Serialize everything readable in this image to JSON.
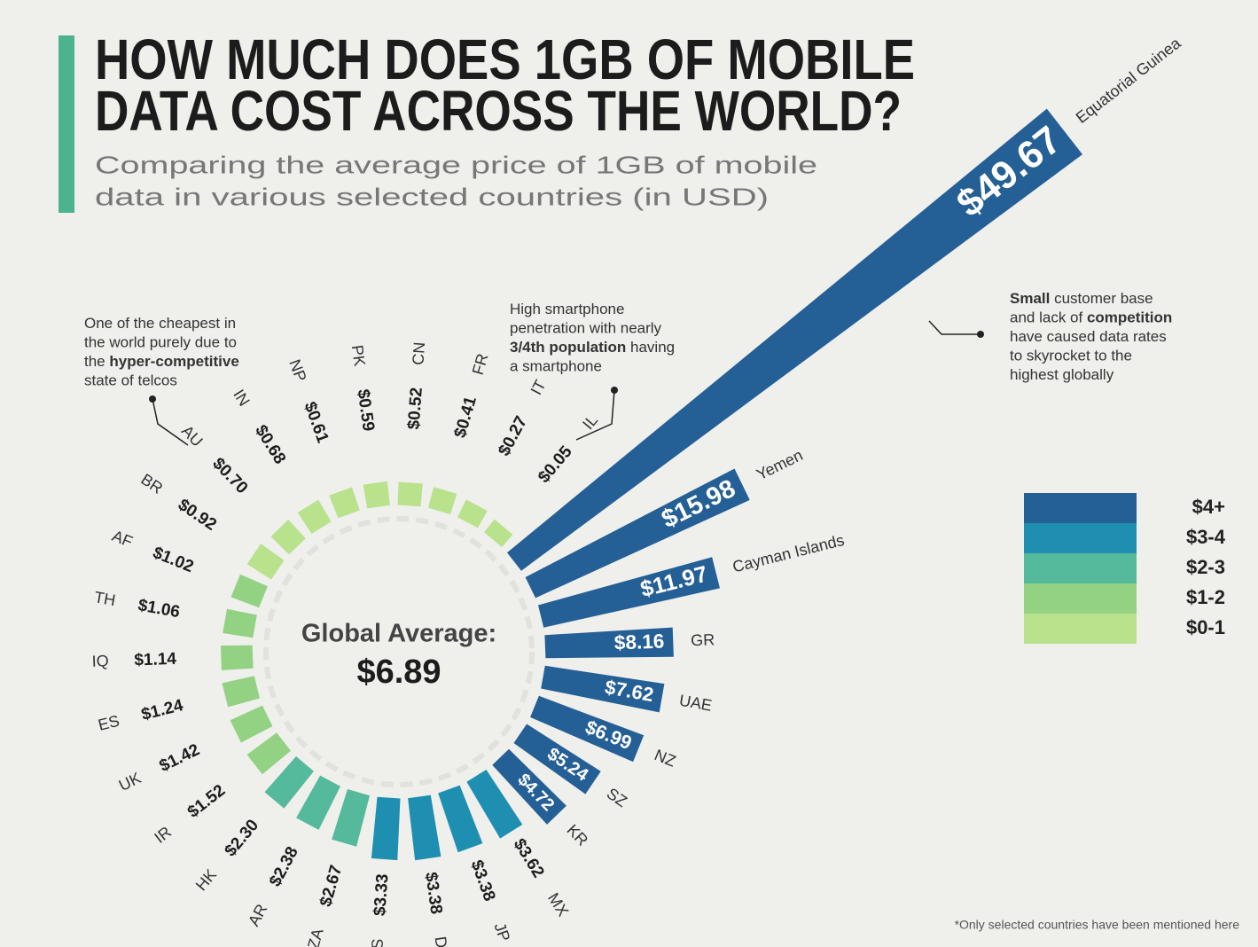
{
  "chart_data": {
    "type": "radial-bar",
    "title": [
      "HOW MUCH DOES 1GB OF MOBILE",
      "DATA COST ACROSS THE WORLD?"
    ],
    "subtitle": [
      "Comparing the average price of 1GB of mobile",
      "data in various selected countries (in USD)"
    ],
    "categories": [
      "IL",
      "IT",
      "FR",
      "CN",
      "PK",
      "NP",
      "IN",
      "AU",
      "BR",
      "AF",
      "TH",
      "IQ",
      "ES",
      "UK",
      "IR",
      "HK",
      "AR",
      "ZA",
      "US",
      "DE",
      "JP",
      "MX",
      "KR",
      "SZ",
      "NZ",
      "UAE",
      "GR",
      "Cayman Islands",
      "Yemen",
      "Equatorial Guinea"
    ],
    "values": [
      0.05,
      0.27,
      0.41,
      0.52,
      0.59,
      0.61,
      0.68,
      0.7,
      0.92,
      1.02,
      1.06,
      1.14,
      1.24,
      1.42,
      1.52,
      2.3,
      2.38,
      2.67,
      3.33,
      3.38,
      3.38,
      3.62,
      4.72,
      5.24,
      6.99,
      7.62,
      8.16,
      11.97,
      15.98,
      49.67
    ],
    "value_labels": [
      "$0.05",
      "$0.27",
      "$0.41",
      "$0.52",
      "$0.59",
      "$0.61",
      "$0.68",
      "$0.70",
      "$0.92",
      "$1.02",
      "$1.06",
      "$1.14",
      "$1.24",
      "$1.42",
      "$1.52",
      "$2.30",
      "$2.38",
      "$2.67",
      "$3.33",
      "$3.38",
      "$3.38",
      "$3.62",
      "$4.72",
      "$5.24",
      "$6.99",
      "$7.62",
      "$8.16",
      "$11.97",
      "$15.98",
      "$49.67"
    ],
    "colors": [
      "#b8e28c",
      "#b8e28c",
      "#b8e28c",
      "#b8e28c",
      "#b8e28c",
      "#b8e28c",
      "#b8e28c",
      "#b8e28c",
      "#b8e28c",
      "#93d283",
      "#93d283",
      "#93d283",
      "#93d283",
      "#93d283",
      "#93d283",
      "#55b99b",
      "#55b99b",
      "#55b99b",
      "#1f8fb1",
      "#1f8fb1",
      "#1f8fb1",
      "#1f8fb1",
      "#245f95",
      "#245f95",
      "#245f95",
      "#245f95",
      "#245f95",
      "#245f95",
      "#245f95",
      "#245f95"
    ],
    "center_label": "Global Average:",
    "global_average": "$6.89",
    "legend": [
      {
        "label": "$4+",
        "color": "#245f95"
      },
      {
        "label": "$3-4",
        "color": "#1f8fb1"
      },
      {
        "label": "$2-3",
        "color": "#55b99b"
      },
      {
        "label": "$1-2",
        "color": "#93d283"
      },
      {
        "label": "$0-1",
        "color": "#b8e28c"
      }
    ],
    "annotations": [
      {
        "lines": [
          [
            {
              "text": "One of the cheapest in"
            }
          ],
          [
            {
              "text": "the world purely due to"
            }
          ],
          [
            {
              "text": "the "
            },
            {
              "text": "hyper-competitive",
              "bold": true
            }
          ],
          [
            {
              "text": "state of telcos"
            }
          ]
        ]
      },
      {
        "lines": [
          [
            {
              "text": "High smartphone"
            }
          ],
          [
            {
              "text": "penetration with nearly"
            }
          ],
          [
            {
              "text": "3/4th population",
              "bold": true
            },
            {
              "text": " having"
            }
          ],
          [
            {
              "text": "a smartphone"
            }
          ]
        ]
      },
      {
        "lines": [
          [
            {
              "text": "Small",
              "bold": true
            },
            {
              "text": " customer base"
            }
          ],
          [
            {
              "text": "and lack of "
            },
            {
              "text": "competition",
              "bold": true
            }
          ],
          [
            {
              "text": "have caused data rates"
            }
          ],
          [
            {
              "text": "to skyrocket to the"
            }
          ],
          [
            {
              "text": "highest globally"
            }
          ]
        ]
      }
    ],
    "footnote": "*Only selected countries have been mentioned here"
  }
}
